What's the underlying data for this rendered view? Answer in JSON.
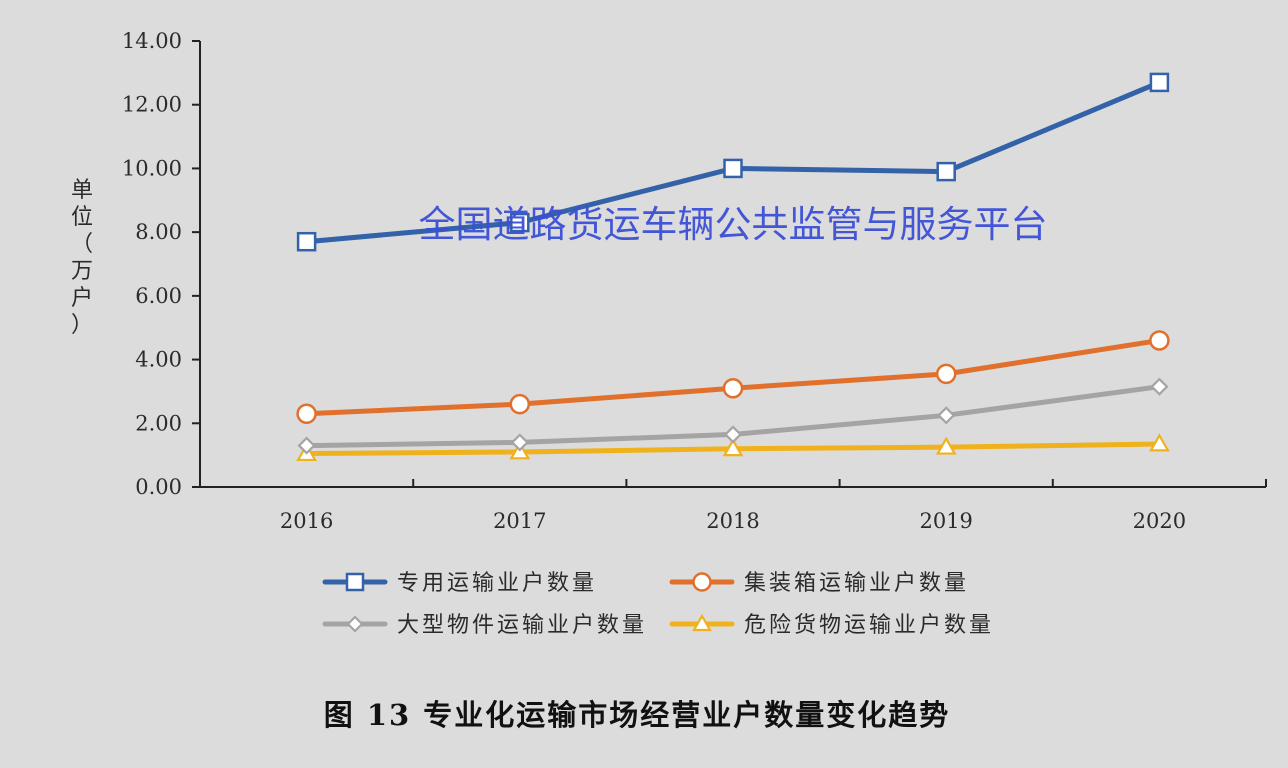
{
  "chart_data": {
    "type": "line",
    "categories": [
      "2016",
      "2017",
      "2018",
      "2019",
      "2020"
    ],
    "ylim": [
      0,
      14
    ],
    "yticks": [
      "0.00",
      "2.00",
      "4.00",
      "6.00",
      "8.00",
      "10.00",
      "12.00",
      "14.00"
    ],
    "ylabel": [
      "单",
      "位",
      "（",
      "万",
      "户",
      "）"
    ],
    "legend_position": "bottom",
    "grid": false,
    "series": [
      {
        "name": "专用运输业户数量",
        "values": [
          7.7,
          8.3,
          10.0,
          9.9,
          12.7
        ],
        "color": "#3362a8",
        "marker": "square"
      },
      {
        "name": "集装箱运输业户数量",
        "values": [
          2.3,
          2.6,
          3.1,
          3.55,
          4.6
        ],
        "color": "#e0702c",
        "marker": "circle"
      },
      {
        "name": "大型物件运输业户数量",
        "values": [
          1.3,
          1.4,
          1.65,
          2.25,
          3.15
        ],
        "color": "#a4a4a4",
        "marker": "diamond"
      },
      {
        "name": "危险货物运输业户数量",
        "values": [
          1.05,
          1.1,
          1.2,
          1.25,
          1.35
        ],
        "color": "#f0b21c",
        "marker": "triangle"
      }
    ]
  },
  "watermark": "全国道路货运车辆公共监管与服务平台",
  "caption": "图 13 专业化运输市场经营业户数量变化趋势"
}
